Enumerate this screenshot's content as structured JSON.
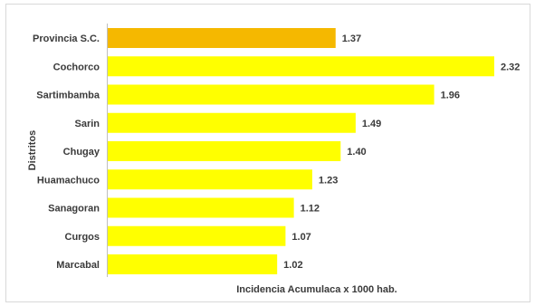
{
  "chart_data": {
    "type": "bar",
    "orientation": "horizontal",
    "title": "",
    "xlabel": "Incidencia Acumulaca x 1000 hab.",
    "ylabel": "Distritos",
    "xlim": [
      0,
      2.5
    ],
    "grid": false,
    "legend": "none",
    "categories": [
      "Provincia S.C.",
      "Cochorco",
      "Sartimbamba",
      "Sarin",
      "Chugay",
      "Huamachuco",
      "Sanagoran",
      "Curgos",
      "Marcabal"
    ],
    "values": [
      1.37,
      2.32,
      1.96,
      1.49,
      1.4,
      1.23,
      1.12,
      1.07,
      1.02
    ],
    "value_labels": [
      "1.37",
      "2.32",
      "1.96",
      "1.49",
      "1.40",
      "1.23",
      "1.12",
      "1.07",
      "1.02"
    ],
    "colors": {
      "highlight": "#F5B800",
      "default": "#FFFF00",
      "highlight_category": "Provincia S.C."
    }
  }
}
